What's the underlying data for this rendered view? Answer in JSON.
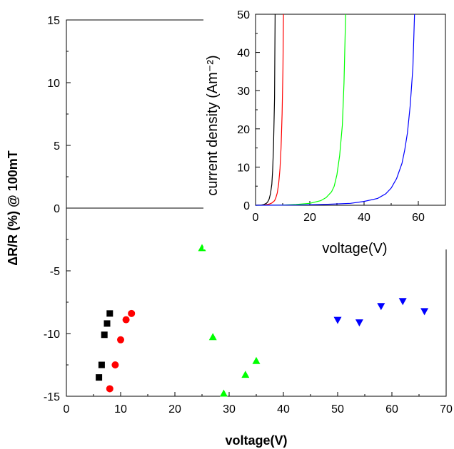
{
  "chart_data": [
    {
      "type": "scatter",
      "title": "",
      "xlabel": "voltage(V)",
      "ylabel": "ΔR/R (%) @ 100mT",
      "xlim": [
        0,
        70
      ],
      "ylim": [
        -15,
        15
      ],
      "xticks": [
        "0",
        "10",
        "20",
        "30",
        "40",
        "50",
        "60",
        "70"
      ],
      "yticks": [
        "-15",
        "-10",
        "-5",
        "0",
        "5",
        "10",
        "15"
      ],
      "zero_line": true,
      "series": [
        {
          "marker": "square",
          "color": "#000000",
          "x": [
            6.0,
            6.5,
            7.0,
            7.5,
            8.0
          ],
          "y": [
            -13.5,
            -12.5,
            -10.1,
            -9.2,
            -8.4
          ]
        },
        {
          "marker": "circle",
          "color": "#ff0000",
          "x": [
            8.0,
            9.0,
            10.0,
            11.0,
            12.0
          ],
          "y": [
            -14.4,
            -12.5,
            -10.5,
            -8.9,
            -8.4
          ]
        },
        {
          "marker": "triangle-up",
          "color": "#00ff00",
          "x": [
            25,
            27,
            29,
            33,
            35
          ],
          "y": [
            -3.2,
            -10.3,
            -14.8,
            -13.3,
            -12.2
          ]
        },
        {
          "marker": "triangle-down",
          "color": "#0000ff",
          "x": [
            50,
            54,
            58,
            62,
            66
          ],
          "y": [
            -8.9,
            -9.1,
            -7.8,
            -7.4,
            -8.2
          ]
        }
      ]
    },
    {
      "type": "line",
      "title": "",
      "xlabel": "voltage(V)",
      "ylabel": "current density (Am⁻²)",
      "xlim": [
        0,
        70
      ],
      "ylim": [
        0,
        50
      ],
      "xticks": [
        "0",
        "20",
        "40",
        "60"
      ],
      "yticks": [
        "0",
        "10",
        "20",
        "30",
        "40",
        "50"
      ],
      "series": [
        {
          "color": "#000000",
          "x": [
            0,
            2,
            3,
            4,
            4.5,
            5,
            5.5,
            6,
            6.3,
            6.6,
            7,
            7.2
          ],
          "y": [
            0,
            0.05,
            0.2,
            0.5,
            0.9,
            1.6,
            3,
            5.5,
            9,
            15,
            28,
            50
          ]
        },
        {
          "color": "#ff0000",
          "x": [
            0,
            3,
            5,
            6,
            7,
            7.5,
            8,
            8.5,
            9,
            9.4,
            9.8,
            10.1,
            10.3
          ],
          "y": [
            0,
            0.05,
            0.3,
            0.6,
            1.2,
            2,
            3.2,
            5.5,
            9.5,
            15,
            24,
            36,
            50
          ]
        },
        {
          "color": "#00ff00",
          "x": [
            0,
            10,
            15,
            20,
            24,
            26,
            28,
            29,
            30,
            31,
            32,
            32.6,
            33.2
          ],
          "y": [
            0,
            0.05,
            0.2,
            0.5,
            1.2,
            2,
            3.5,
            5,
            8,
            13,
            21,
            32,
            50
          ]
        },
        {
          "color": "#0000ff",
          "x": [
            0,
            15,
            25,
            35,
            40,
            45,
            48,
            50,
            52,
            54,
            55,
            56,
            57,
            58,
            58.6
          ],
          "y": [
            0,
            0.05,
            0.2,
            0.5,
            1,
            1.8,
            3,
            4.5,
            7,
            11,
            14.5,
            19,
            26,
            36,
            50
          ]
        }
      ]
    }
  ]
}
